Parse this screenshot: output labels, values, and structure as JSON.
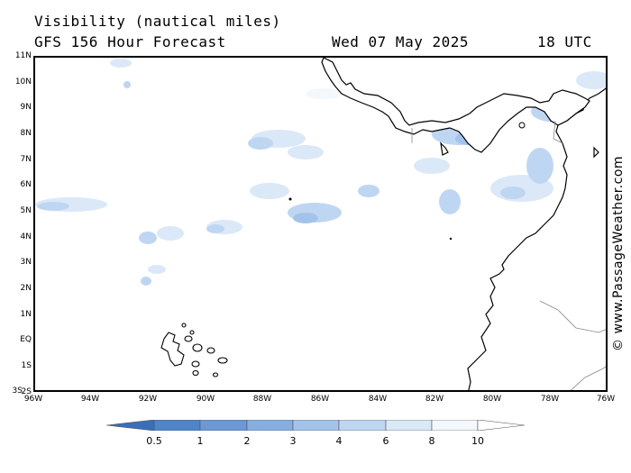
{
  "header": {
    "title": "Visibility (nautical miles)",
    "model": "GFS 156 Hour Forecast",
    "date": "Wed 07 May 2025",
    "time": "18 UTC"
  },
  "map": {
    "lat_labels": [
      "11N",
      "10N",
      "9N",
      "8N",
      "7N",
      "6N",
      "5N",
      "4N",
      "3N",
      "2N",
      "1N",
      "EQ",
      "1S",
      "2S",
      "3S"
    ],
    "lon_labels": [
      "96W",
      "94W",
      "92W",
      "90W",
      "88W",
      "86W",
      "84W",
      "82W",
      "80W",
      "78W",
      "76W"
    ],
    "land_color": "#ffffff",
    "coast_color": "#000000",
    "border_color": "#888888"
  },
  "credit": "© www.PassageWeather.com",
  "colorbar": {
    "labels": [
      "0.5",
      "1",
      "2",
      "3",
      "4",
      "6",
      "8",
      "10"
    ],
    "colors": [
      "#3a6fb8",
      "#4f84c9",
      "#6a99d6",
      "#86aee0",
      "#a3c3ea",
      "#bfd6f2",
      "#dbe8f8",
      "#f3f8fd"
    ]
  }
}
